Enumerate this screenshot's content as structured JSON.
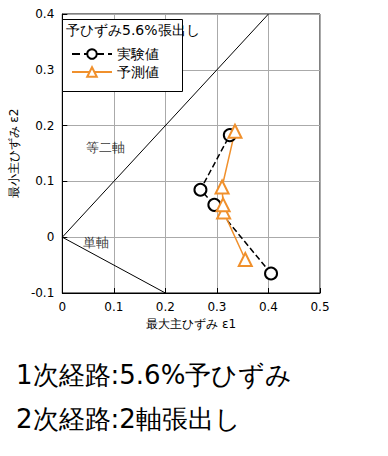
{
  "chart_data": {
    "type": "line",
    "legend_title": "予ひずみ5.6%張出し",
    "x_label": "最大主ひずみ ε1",
    "y_label": "最小主ひずみ ε2",
    "xlim": [
      0,
      0.5
    ],
    "xticks": [
      0,
      0.1,
      0.2,
      0.3,
      0.4,
      0.5
    ],
    "ylim": [
      -0.1,
      0.4
    ],
    "yticks": [
      -0.1,
      0,
      0.1,
      0.2,
      0.3,
      0.4
    ],
    "grid": true,
    "legend": "upper left",
    "series": [
      {
        "name": "実験値",
        "color": "#000000",
        "marker": "circle",
        "line_style": "dashed",
        "x": [
          0.405,
          0.295,
          0.268,
          0.325
        ],
        "values": [
          -0.065,
          0.058,
          0.085,
          0.183
        ]
      },
      {
        "name": "予測値",
        "color": "#f0902c",
        "marker": "triangle",
        "line_style": "solid",
        "x": [
          0.355,
          0.313,
          0.312,
          0.31,
          0.335
        ],
        "values": [
          -0.04,
          0.045,
          0.058,
          0.09,
          0.19
        ]
      }
    ],
    "reference_lines": [
      {
        "x": [
          0,
          0.4
        ],
        "values": [
          0,
          0.4
        ],
        "color": "#000000"
      },
      {
        "x": [
          0,
          0.2
        ],
        "values": [
          0,
          -0.1
        ],
        "color": "#000000"
      }
    ],
    "annotations": [
      {
        "text": "等二軸",
        "x": 0.045,
        "y": 0.16
      },
      {
        "text": "単軸",
        "x": 0.04,
        "y": -0.01
      }
    ],
    "notes": [
      "1次経路:5.6%予ひずみ",
      "2次経路:2軸張出し"
    ]
  }
}
